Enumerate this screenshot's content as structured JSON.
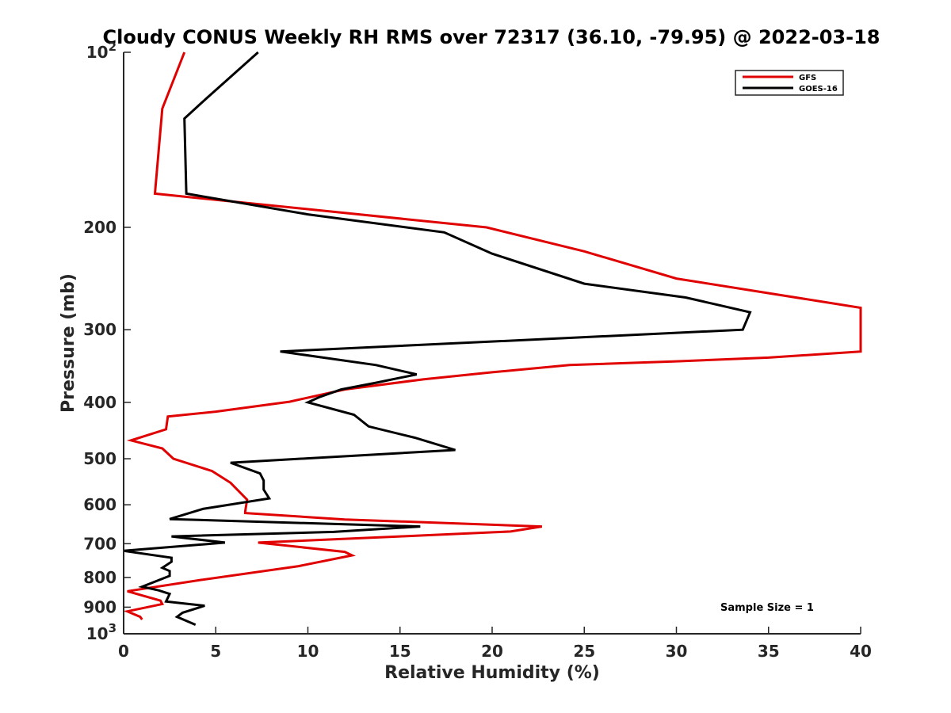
{
  "chart_data": {
    "type": "line",
    "title": "Cloudy CONUS Weekly RH RMS over 72317 (36.10, -79.95) @ 2022-03-18",
    "xlabel": "Relative Humidity (%)",
    "ylabel": "Pressure (mb)",
    "xlim": [
      0,
      40
    ],
    "ylim": [
      100,
      1000
    ],
    "y_scale": "log",
    "y_reversed": true,
    "grid": false,
    "legend_position": "top-right",
    "x_ticks": [
      0,
      5,
      10,
      15,
      20,
      25,
      30,
      35,
      40
    ],
    "x_tick_labels": [
      "0",
      "5",
      "10",
      "15",
      "20",
      "25",
      "30",
      "35",
      "40"
    ],
    "y_ticks": [
      {
        "value": 100,
        "base": "10",
        "exp": "2"
      },
      {
        "value": 200,
        "label": "200"
      },
      {
        "value": 300,
        "label": "300"
      },
      {
        "value": 400,
        "label": "400"
      },
      {
        "value": 500,
        "label": "500"
      },
      {
        "value": 600,
        "label": "600"
      },
      {
        "value": 700,
        "label": "700"
      },
      {
        "value": 800,
        "label": "800"
      },
      {
        "value": 900,
        "label": "900"
      },
      {
        "value": 1000,
        "base": "10",
        "exp": "3"
      }
    ],
    "annotation": "Sample Size = 1",
    "series": [
      {
        "name": "GFS",
        "color": "#e00000",
        "points": [
          [
            3.3,
            100
          ],
          [
            2.1,
            125
          ],
          [
            1.7,
            175
          ],
          [
            19.7,
            200
          ],
          [
            25,
            220
          ],
          [
            30,
            245
          ],
          [
            40,
            275
          ],
          [
            40,
            327
          ],
          [
            35,
            335
          ],
          [
            30,
            340
          ],
          [
            24.2,
            345
          ],
          [
            20,
            355
          ],
          [
            16.3,
            365
          ],
          [
            12,
            380
          ],
          [
            9.0,
            399
          ],
          [
            5,
            415
          ],
          [
            2.4,
            423
          ],
          [
            2.3,
            445
          ],
          [
            0.4,
            465
          ],
          [
            2.1,
            480
          ],
          [
            2.7,
            500
          ],
          [
            4.8,
            525
          ],
          [
            5.8,
            550
          ],
          [
            6.7,
            588
          ],
          [
            6.6,
            616
          ],
          [
            6.6,
            620
          ],
          [
            12,
            636
          ],
          [
            22.7,
            654
          ],
          [
            21,
            667
          ],
          [
            15,
            680
          ],
          [
            7.3,
            697
          ],
          [
            12,
            723
          ],
          [
            12.4,
            733
          ],
          [
            9.5,
            765
          ],
          [
            4.2,
            808
          ],
          [
            0.2,
            845
          ],
          [
            2.0,
            877
          ],
          [
            2.1,
            889
          ],
          [
            0.2,
            915
          ],
          [
            0.9,
            935
          ],
          [
            1.0,
            945
          ]
        ]
      },
      {
        "name": "GOES-16",
        "color": "#000000",
        "points": [
          [
            7.3,
            100
          ],
          [
            4.5,
            120
          ],
          [
            3.3,
            130
          ],
          [
            3.4,
            175
          ],
          [
            10,
            190
          ],
          [
            17.4,
            204
          ],
          [
            20,
            222
          ],
          [
            25,
            250
          ],
          [
            30.5,
            264
          ],
          [
            34.0,
            280
          ],
          [
            33.6,
            300
          ],
          [
            8.5,
            327
          ],
          [
            13.7,
            345
          ],
          [
            15.9,
            358
          ],
          [
            13.7,
            370
          ],
          [
            11.8,
            380
          ],
          [
            10.6,
            392
          ],
          [
            10.0,
            400
          ],
          [
            12.5,
            420
          ],
          [
            13.3,
            440
          ],
          [
            15.8,
            460
          ],
          [
            18.0,
            483
          ],
          [
            5.8,
            508
          ],
          [
            7.4,
            530
          ],
          [
            7.6,
            545
          ],
          [
            7.6,
            565
          ],
          [
            7.9,
            585
          ],
          [
            4.3,
            610
          ],
          [
            2.5,
            635
          ],
          [
            16.1,
            654
          ],
          [
            11.4,
            668
          ],
          [
            2.6,
            680
          ],
          [
            5.5,
            697
          ],
          [
            0,
            720
          ],
          [
            2.6,
            740
          ],
          [
            2.6,
            752
          ],
          [
            2.1,
            770
          ],
          [
            2.5,
            780
          ],
          [
            2.5,
            795
          ],
          [
            1.0,
            830
          ],
          [
            1.9,
            842
          ],
          [
            2.5,
            854
          ],
          [
            2.3,
            880
          ],
          [
            4.4,
            895
          ],
          [
            3.2,
            920
          ],
          [
            2.9,
            935
          ],
          [
            3.9,
            965
          ]
        ]
      }
    ]
  }
}
